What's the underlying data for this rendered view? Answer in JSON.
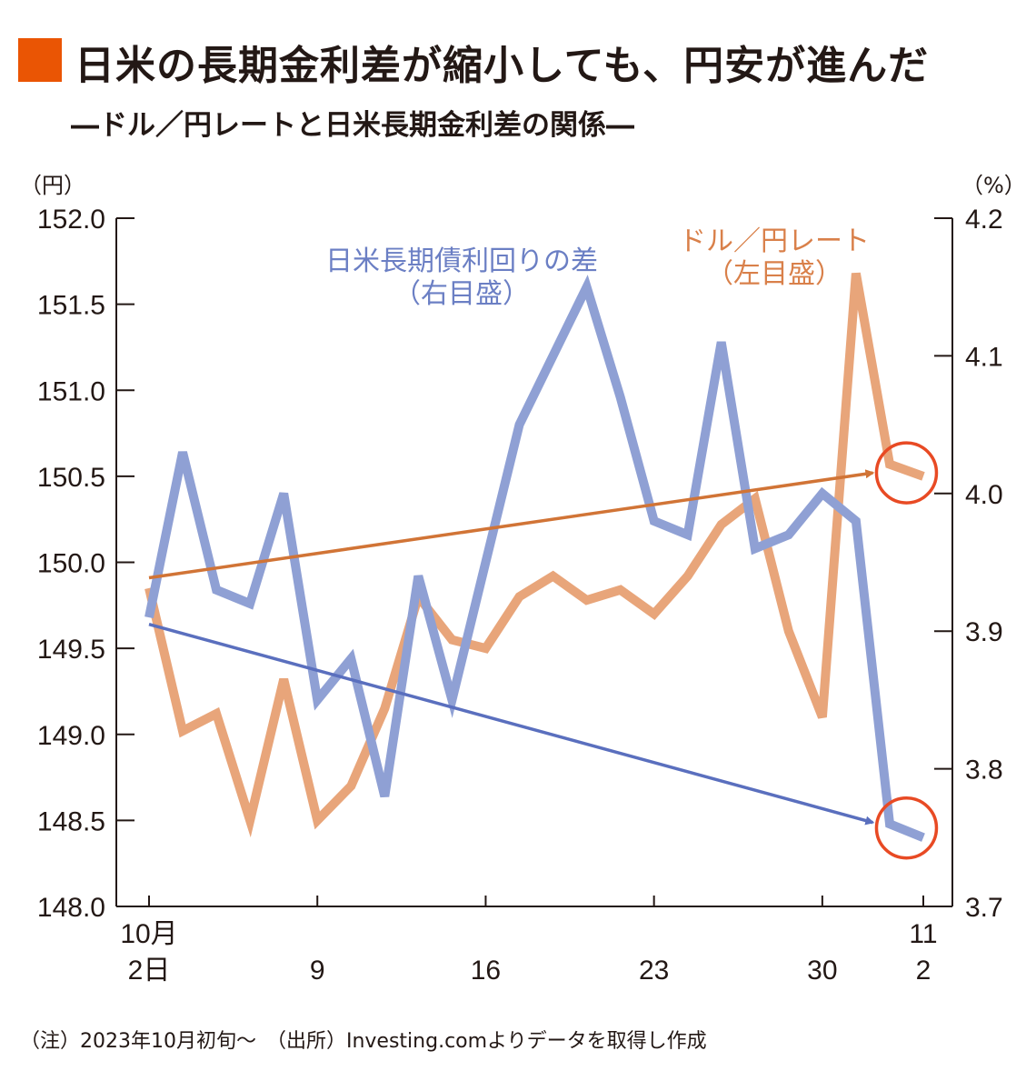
{
  "title": "日米の長期金利差が縮小しても、円安が進んだ",
  "subtitle": "―ドル／円レートと日米長期金利差の関係―",
  "note": "（注）2023年10月初旬～　（出所）Investing.comよりデータを取得し作成",
  "colors": {
    "title_marker": "#ea5504",
    "usdjpy_line": "#e8a57a",
    "usdjpy_label": "#d9804a",
    "usdjpy_arrow": "#d17436",
    "spread_line": "#8fa0d4",
    "spread_label": "#6b7fc4",
    "spread_arrow": "#5a6fbe",
    "highlight_circle": "#e84a24",
    "axis": "#231815"
  },
  "chart_data": {
    "type": "line",
    "left_axis": {
      "unit_label": "（円）",
      "ylim": [
        148.0,
        152.0
      ],
      "ticks": [
        "152.0",
        "151.5",
        "151.0",
        "150.5",
        "150.0",
        "149.5",
        "149.0",
        "148.5",
        "148.0"
      ]
    },
    "right_axis": {
      "unit_label": "（%）",
      "ylim": [
        3.7,
        4.2
      ],
      "ticks": [
        "4.2",
        "4.1",
        "4.0",
        "3.9",
        "3.8",
        "3.7"
      ]
    },
    "x_ticks": [
      {
        "index": 0,
        "line1": "10月",
        "line2": "2日"
      },
      {
        "index": 5,
        "line1": "",
        "line2": "9"
      },
      {
        "index": 10,
        "line1": "",
        "line2": "16"
      },
      {
        "index": 15,
        "line1": "",
        "line2": "23"
      },
      {
        "index": 20,
        "line1": "",
        "line2": "30"
      },
      {
        "index": 23,
        "line1": "11",
        "line2": "2"
      }
    ],
    "series": [
      {
        "name": "ドル／円レート",
        "sub": "（左目盛）",
        "axis": "left",
        "values": [
          149.85,
          149.02,
          149.12,
          148.5,
          149.32,
          148.5,
          148.7,
          149.15,
          149.8,
          149.55,
          149.5,
          149.8,
          149.92,
          149.78,
          149.84,
          149.7,
          149.92,
          150.22,
          150.37,
          149.6,
          149.1,
          151.68,
          150.57,
          150.5
        ]
      },
      {
        "name": "日米長期債利回りの差",
        "sub": "（右目盛）",
        "axis": "right",
        "values": [
          3.91,
          4.03,
          3.93,
          3.92,
          4.0,
          3.85,
          3.88,
          3.78,
          3.94,
          3.85,
          3.95,
          4.05,
          4.1,
          4.15,
          4.07,
          3.98,
          3.97,
          4.11,
          3.96,
          3.97,
          4.0,
          3.98,
          3.76,
          3.75
        ]
      }
    ],
    "trend_arrows": [
      {
        "series": "ドル／円レート",
        "from": [
          0,
          149.91
        ],
        "to": [
          21.5,
          150.52
        ]
      },
      {
        "series": "日米長期債利回りの差",
        "from": [
          0,
          3.905
        ],
        "to": [
          21.5,
          3.761
        ]
      }
    ],
    "highlight_circles": [
      {
        "series": "ドル／円レート",
        "at": [
          22.5,
          150.52
        ]
      },
      {
        "series": "日米長期債利回りの差",
        "at": [
          22.5,
          3.757
        ]
      }
    ]
  }
}
